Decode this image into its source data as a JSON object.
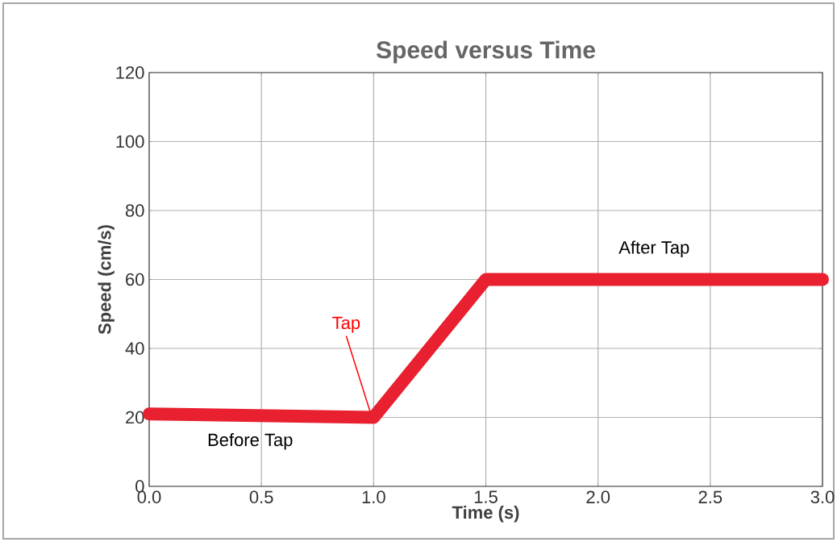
{
  "chart_data": {
    "type": "line",
    "title": "Speed versus Time",
    "xlabel": "Time (s)",
    "ylabel": "Speed (cm/s)",
    "x": [
      0,
      1,
      1.5,
      3
    ],
    "series": [
      {
        "color": "#e8202f",
        "values": [
          21,
          20,
          60,
          60
        ]
      }
    ],
    "xlim": [
      0,
      3
    ],
    "ylim": [
      0,
      120
    ],
    "xticks": [
      {
        "value": 0,
        "label": "0.0"
      },
      {
        "value": 0.5,
        "label": "0.5"
      },
      {
        "value": 1,
        "label": "1.0"
      },
      {
        "value": 1.5,
        "label": "1.5"
      },
      {
        "value": 2,
        "label": "2.0"
      },
      {
        "value": 2.5,
        "label": "2.5"
      },
      {
        "value": 3,
        "label": "3.0"
      }
    ],
    "yticks": [
      0,
      20,
      40,
      60,
      80,
      100,
      120
    ],
    "grid": true,
    "marker": "none",
    "line_style": "solid",
    "annotations": [
      {
        "text": "Tap",
        "x": 1,
        "y": 20
      },
      {
        "text": "Before Tap",
        "x": 0.45,
        "y": 20
      },
      {
        "text": "After Tap",
        "x": 2.25,
        "y": 60
      }
    ]
  }
}
